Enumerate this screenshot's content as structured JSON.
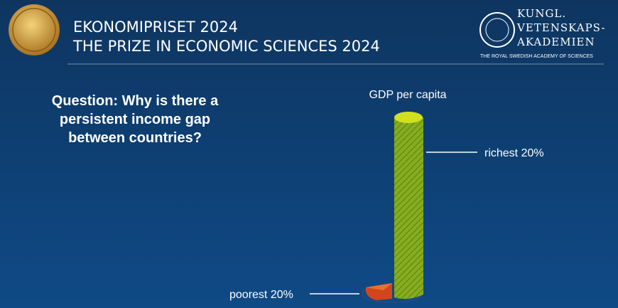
{
  "header": {
    "title_sv": "EKONOMIPRISET 2024",
    "title_en": "THE PRIZE IN ECONOMIC SCIENCES 2024",
    "logo": {
      "lines": [
        "KUNGL.",
        "VETENSKAPS-",
        "AKADEMIEN"
      ],
      "tagline": "THE ROYAL SWEDISH ACADEMY OF SCIENCES"
    }
  },
  "slide": {
    "question": [
      "Question: Why is there a",
      "persistent income gap",
      "between countries?"
    ],
    "figure": {
      "title": "GDP per capita",
      "labels": [
        "richest 20%",
        "poorest 20%"
      ]
    }
  }
}
